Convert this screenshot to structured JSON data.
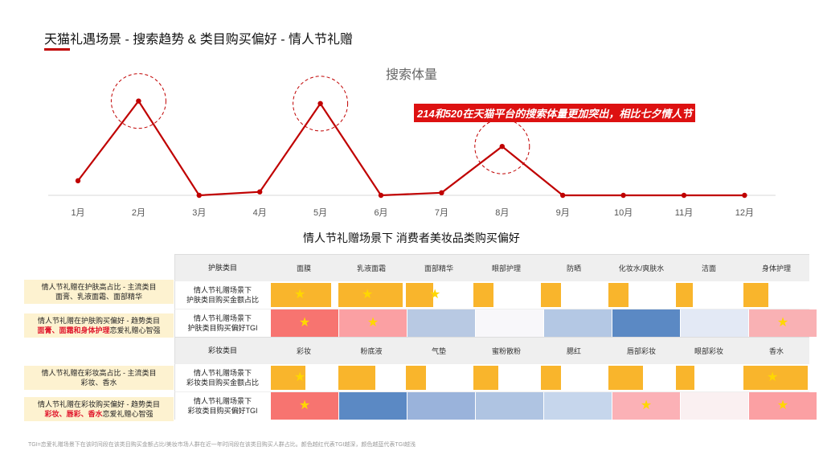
{
  "page_title": "天猫礼遇场景 - 搜索趋势 & 类目购买偏好 - 情人节礼赠",
  "callout": "214和520在天猫平台的搜索体量更加突出，相比七夕情人节",
  "table_title": "情人节礼赠场景下 消费者美妆品类购买偏好",
  "chart_data": {
    "type": "line",
    "title": "搜索体量",
    "categories": [
      "1月",
      "2月",
      "3月",
      "4月",
      "5月",
      "6月",
      "7月",
      "8月",
      "9月",
      "10月",
      "11月",
      "12月"
    ],
    "series": [
      {
        "values": [
          17,
          110,
          0,
          4,
          107,
          0,
          3,
          57,
          0,
          0,
          0,
          0
        ]
      }
    ],
    "ylim": [
      0,
      120
    ],
    "highlighted": [
      "2月",
      "5月",
      "8月"
    ],
    "color": "#c00000",
    "grid": false
  },
  "skincare": {
    "header": "护肤类目",
    "categories": [
      "面膜",
      "乳液面霜",
      "面部精华",
      "眼部护理",
      "防晒",
      "化妆水/爽肤水",
      "洁面",
      "身体护理"
    ],
    "share_label": "情人节礼赠场景下\n护肤类目购买金额占比",
    "share": [
      0.92,
      0.97,
      0.42,
      0.31,
      0.31,
      0.31,
      0.25,
      0.38
    ],
    "share_star": [
      true,
      true,
      true,
      false,
      false,
      false,
      false,
      false
    ],
    "tgi_label": "情人节礼赠场景下\n护肤类目购买偏好TGI",
    "tgi_colors": [
      "#f77470",
      "#fba0a3",
      "#b8c9e3",
      "#f8f7fa",
      "#b4c8e4",
      "#5b89c4",
      "#e3e9f5",
      "#f9b1b4"
    ],
    "tgi_star": [
      true,
      true,
      false,
      false,
      false,
      false,
      false,
      true
    ]
  },
  "makeup": {
    "header": "彩妆类目",
    "categories": [
      "彩妆",
      "粉底液",
      "气垫",
      "蜜粉散粉",
      "腮红",
      "唇部彩妆",
      "眼部彩妆",
      "香水"
    ],
    "share_label": "情人节礼赠场景下\n彩妆类目购买金额占比",
    "share": [
      0.52,
      0.56,
      0.31,
      0.38,
      0.31,
      0.52,
      0.28,
      0.97
    ],
    "share_star": [
      true,
      false,
      false,
      false,
      false,
      false,
      false,
      true
    ],
    "tgi_label": "情人节礼赠场景下\n彩妆类目购买偏好TGI",
    "tgi_colors": [
      "#f77470",
      "#5b89c4",
      "#9ab3db",
      "#afc4e2",
      "#c6d6ec",
      "#fbb1b6",
      "#faf0f1",
      "#fba0a3"
    ],
    "tgi_star": [
      true,
      false,
      false,
      false,
      false,
      true,
      false,
      true
    ]
  },
  "side_labels": {
    "s1_line1": "情人节礼赠在护肤高占比 - 主流类目",
    "s1_line2": "面膏、乳液面霜、面部精华",
    "s2_line1": "情人节礼赠在护肤购买偏好 - 趋势类目",
    "s2_red": "面膏、面霜和身体护理",
    "s2_tail": "恋爱礼赠心智强",
    "m1_line1": "情人节礼赠在彩妆高占比 - 主流类目",
    "m1_line2": "彩妆、香水",
    "m2_line1": "情人节礼赠在彩妆购买偏好 - 趋势类目",
    "m2_red": "彩妆、唇彩、香水",
    "m2_tail": "恋爱礼赠心智强"
  },
  "footnote": "TGI=恋爱礼赠场景下在该时间段在该类目购买金额占比/美妆市场人群在近一年时间段在该类目购买人群占比。颜色越红代表TGI越深，颜色越蓝代表TGI越浅"
}
